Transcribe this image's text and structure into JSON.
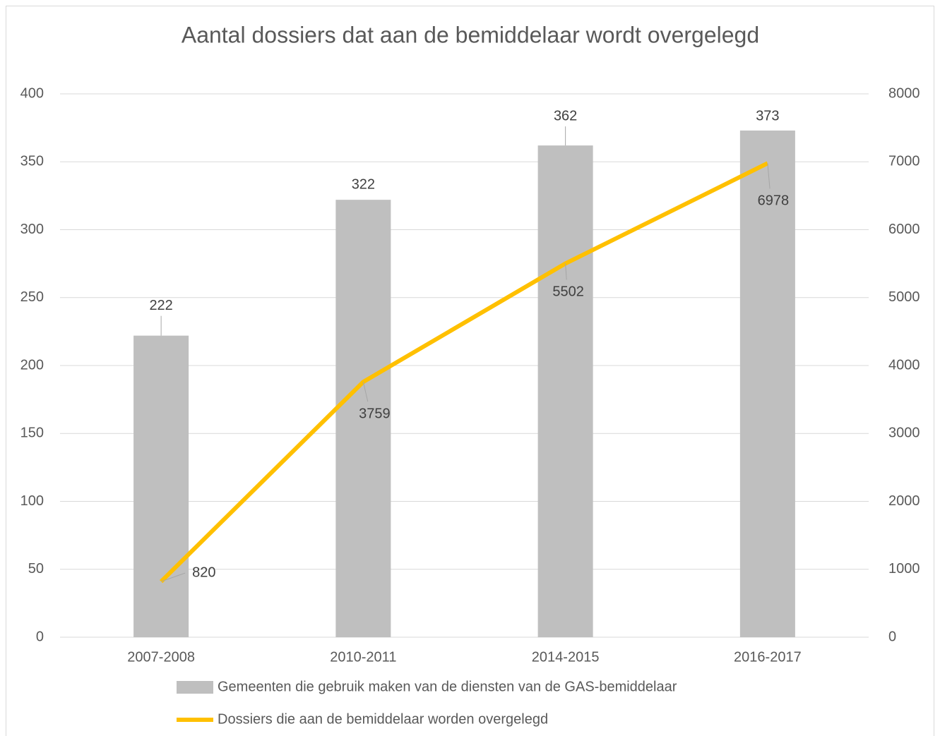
{
  "chart_data": {
    "type": "combo",
    "title": "Aantal dossiers dat aan de bemiddelaar wordt overgelegd",
    "categories": [
      "2007-2008",
      "2010-2011",
      "2014-2015",
      "2016-2017"
    ],
    "series": [
      {
        "name": "Gemeenten die gebruik maken van de diensten van de GAS-bemiddelaar",
        "type": "bar",
        "axis": "y",
        "color": "#bfbfbf",
        "values": [
          222,
          322,
          362,
          373
        ]
      },
      {
        "name": "Dossiers die aan de bemiddelaar worden overgelegd",
        "type": "line",
        "axis": "y2",
        "color": "#ffc000",
        "values": [
          820,
          3759,
          5502,
          6978
        ]
      }
    ],
    "ylim": [
      0,
      400
    ],
    "yticks": [
      0,
      50,
      100,
      150,
      200,
      250,
      300,
      350,
      400
    ],
    "y2lim": [
      0,
      8000
    ],
    "y2ticks": [
      0,
      1000,
      2000,
      3000,
      4000,
      5000,
      6000,
      7000,
      8000
    ],
    "grid": true,
    "legend": "bottom"
  }
}
